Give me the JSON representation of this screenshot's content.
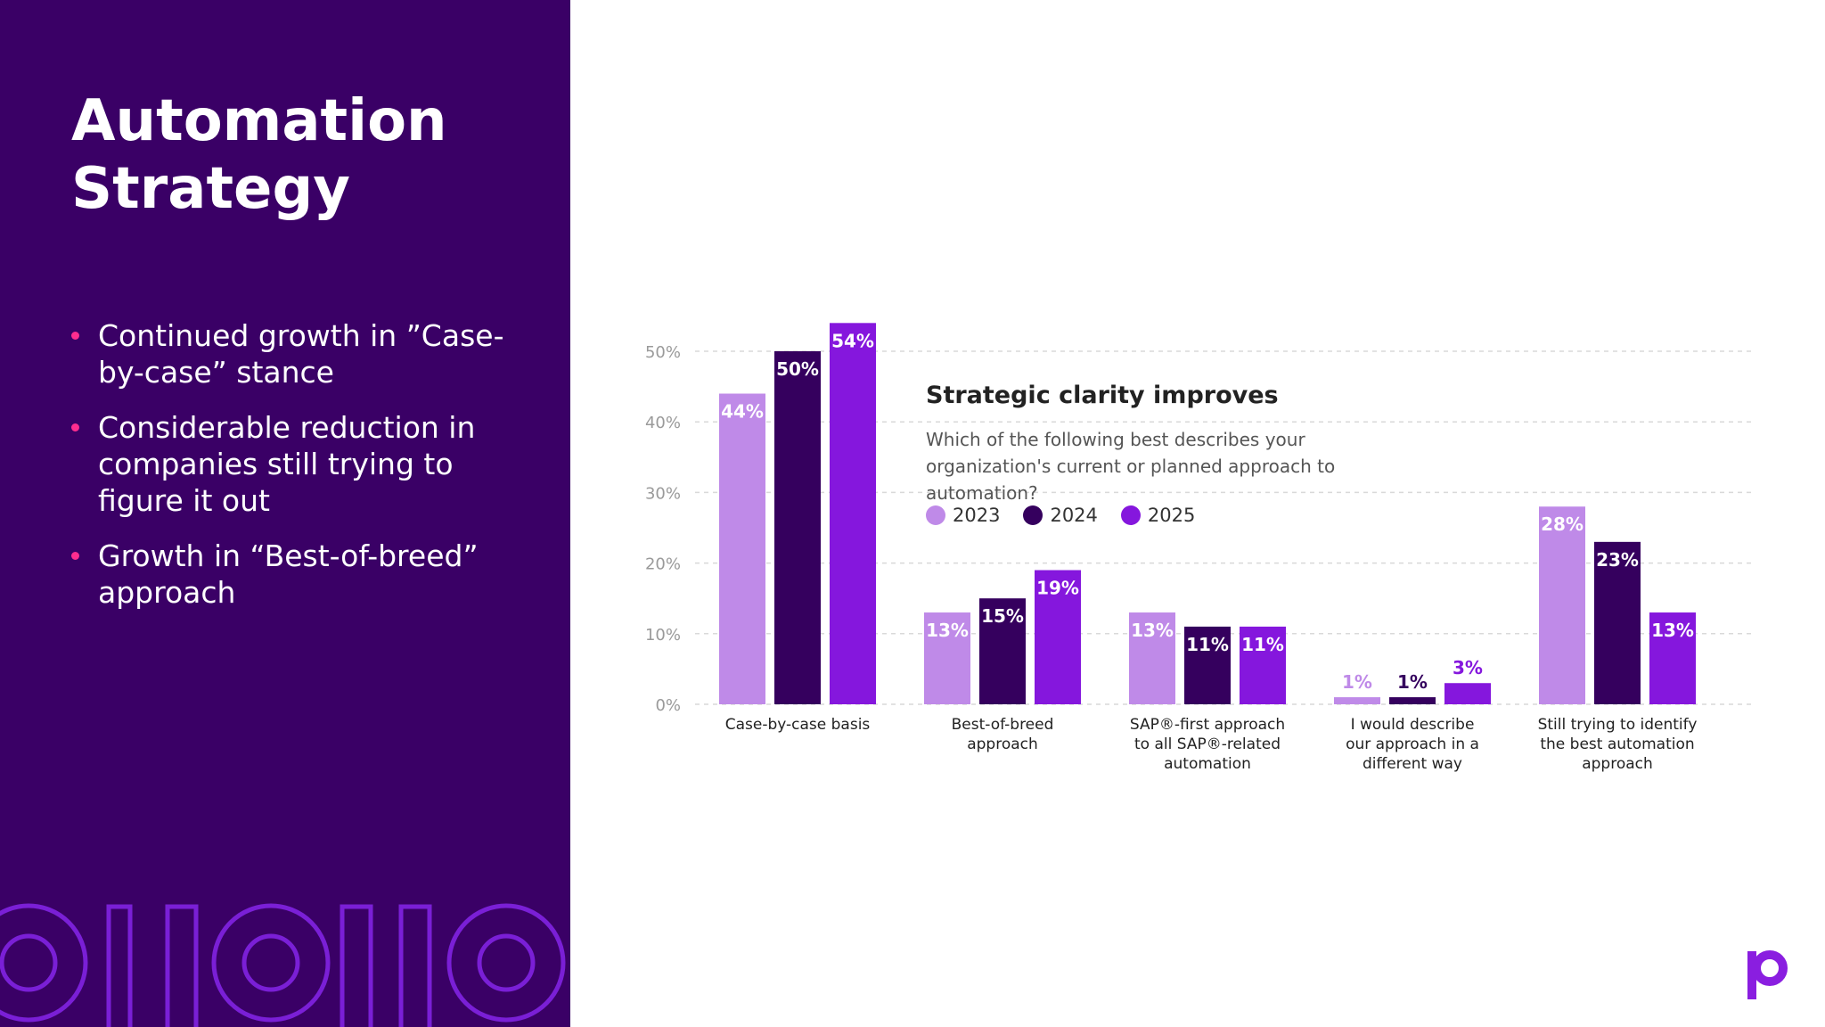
{
  "slide": {
    "title_line1": "Automation",
    "title_line2": "Strategy",
    "bullets": [
      "Continued growth in ”Case-by-case” stance",
      "Considerable reduction in companies still trying to figure it out",
      "Growth in “Best-of-breed” approach"
    ]
  },
  "colors": {
    "panel_bg": "#3a0066",
    "bullet_accent": "#ff2d8f",
    "decor_stroke": "#7a1fd6",
    "series_2023": "#bf8ae8",
    "series_2024": "#35005e",
    "series_2025": "#8517dd",
    "logo": "#8a1ee0"
  },
  "icons": {
    "decor": "ring-and-bar-pattern",
    "logo": "brand-logo-icon"
  },
  "chart_data": {
    "type": "bar",
    "title": "Strategic clarity improves",
    "subtitle": "Which of the following best describes your organization's current or planned approach to automation?",
    "categories": [
      "Case-by-case basis",
      "Best-of-breed approach",
      "SAP®-first approach to all SAP®-related automation",
      "I would describe our approach in a different way",
      "Still trying to identify the best automation approach"
    ],
    "category_lines": [
      [
        "Case-by-case basis"
      ],
      [
        "Best-of-breed",
        "approach"
      ],
      [
        "SAP®-first approach",
        "to all SAP®-related",
        "automation"
      ],
      [
        "I would describe",
        "our approach in a",
        "different way"
      ],
      [
        "Still trying to identify",
        "the best automation",
        "approach"
      ]
    ],
    "series": [
      {
        "name": "2023",
        "values": [
          44,
          13,
          13,
          1,
          28
        ],
        "labels": [
          "44%",
          "13%",
          "13%",
          "1%",
          "28%"
        ]
      },
      {
        "name": "2024",
        "values": [
          50,
          15,
          11,
          1,
          23
        ],
        "labels": [
          "50%",
          "15%",
          "11%",
          "1%",
          "23%"
        ]
      },
      {
        "name": "2025",
        "values": [
          54,
          19,
          11,
          3,
          13
        ],
        "labels": [
          "54%",
          "19%",
          "11%",
          "3%",
          "13%"
        ]
      }
    ],
    "ylim": [
      0,
      50
    ],
    "yticks": [
      0,
      10,
      20,
      30,
      40,
      50
    ],
    "ytick_labels": [
      "0%",
      "10%",
      "20%",
      "30%",
      "40%",
      "50%"
    ],
    "grid": true,
    "legend_position": "top-left",
    "xlabel": "",
    "ylabel": ""
  }
}
